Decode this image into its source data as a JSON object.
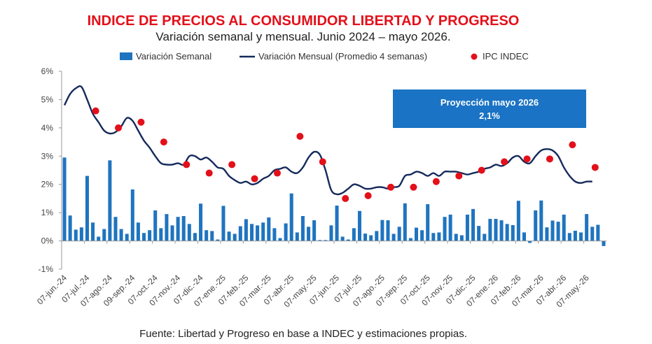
{
  "chart_data": {
    "type": "bar",
    "title": "INDICE DE PRECIOS AL CONSUMIDOR LIBERTAD Y PROGRESO",
    "subtitle": "Variación semanal y mensual. Junio 2024 – mayo 2026.",
    "legend": {
      "placement": "top",
      "entries": [
        "Variación Semanal",
        "Variación Mensual (Promedio 4 semanas)",
        "IPC INDEC"
      ]
    },
    "colors": {
      "bars": "#1f74bf",
      "line": "#152a5c",
      "points": "#e3101a",
      "annotation_box": "#1a73c4",
      "title": "#e3101a"
    },
    "ylim": [
      -1,
      6
    ],
    "y_ticks": [
      "-1%",
      "0%",
      "1%",
      "2%",
      "3%",
      "4%",
      "5%",
      "6%"
    ],
    "x_tick_labels": [
      "07-jun.-24",
      "07-jul.-24",
      "07-ago.-24",
      "09-sep.-24",
      "07-oct.-24",
      "07-nov.-24",
      "07-dic.-24",
      "07-ene.-25",
      "07-feb.-25",
      "07-mar.-25",
      "07-abr.-25",
      "07-may.-25",
      "07-jun.-25",
      "07-jul.-25",
      "07-ago.-25",
      "07-sep.-25",
      "07-oct.-25",
      "07-nov.-25",
      "07-dic.-25",
      "07-ene.-26",
      "07-feb.-26",
      "07-mar.-26",
      "07-abr.-26",
      "07-may.-26"
    ],
    "grid": false,
    "weekly_values": [
      2.95,
      0.9,
      0.4,
      0.48,
      2.3,
      0.65,
      0.15,
      0.42,
      2.85,
      0.85,
      0.42,
      0.25,
      1.82,
      0.65,
      0.28,
      0.38,
      1.08,
      0.45,
      0.95,
      0.55,
      0.85,
      0.88,
      0.6,
      0.28,
      1.32,
      0.38,
      0.35,
      0.05,
      1.24,
      0.33,
      0.25,
      0.52,
      0.77,
      0.6,
      0.55,
      0.65,
      0.83,
      0.45,
      0.1,
      0.62,
      1.68,
      0.3,
      0.88,
      0.5,
      0.73,
      0.03,
      0.03,
      0.55,
      1.25,
      0.15,
      0.05,
      0.45,
      1.06,
      0.26,
      0.2,
      0.35,
      0.74,
      0.73,
      0.25,
      0.5,
      1.33,
      0.1,
      0.47,
      0.38,
      1.3,
      0.28,
      0.3,
      0.85,
      0.93,
      0.25,
      0.2,
      0.93,
      1.13,
      0.53,
      0.25,
      0.78,
      0.78,
      0.73,
      0.6,
      0.56,
      1.42,
      0.3,
      -0.07,
      1.08,
      1.43,
      0.48,
      0.72,
      0.68,
      0.93,
      0.28,
      0.36,
      0.3,
      0.95,
      0.5,
      0.57,
      -0.18
    ],
    "monthly_avg_line": [
      4.8,
      5.2,
      5.4,
      5.45,
      5.0,
      4.5,
      4.2,
      3.9,
      3.8,
      3.85,
      4.05,
      4.35,
      4.25,
      3.9,
      3.55,
      3.3,
      3.0,
      2.75,
      2.7,
      2.7,
      2.75,
      2.7,
      3.0,
      3.0,
      2.88,
      2.95,
      2.8,
      2.6,
      2.55,
      2.3,
      2.15,
      2.05,
      2.1,
      2.0,
      2.05,
      2.2,
      2.3,
      2.5,
      2.55,
      2.6,
      2.45,
      2.4,
      2.6,
      2.95,
      3.15,
      3.05,
      2.5,
      1.8,
      1.65,
      1.7,
      1.85,
      2.0,
      1.95,
      1.85,
      1.85,
      1.9,
      1.9,
      1.85,
      1.9,
      1.95,
      2.3,
      2.35,
      2.45,
      2.4,
      2.3,
      2.4,
      2.3,
      2.45,
      2.45,
      2.45,
      2.4,
      2.35,
      2.4,
      2.45,
      2.55,
      2.6,
      2.7,
      2.65,
      2.75,
      2.95,
      3.0,
      2.8,
      2.75,
      3.0,
      3.2,
      3.25,
      3.2,
      3.0,
      2.6,
      2.3,
      2.1,
      2.05,
      2.1,
      2.1
    ],
    "ipc_indec": [
      {
        "x": "07-jul.-24",
        "y": 4.6
      },
      {
        "x": "07-ago.-24",
        "y": 4.0
      },
      {
        "x": "09-sep.-24",
        "y": 4.2
      },
      {
        "x": "07-oct.-24",
        "y": 3.5
      },
      {
        "x": "07-nov.-24",
        "y": 2.7
      },
      {
        "x": "07-dic.-24",
        "y": 2.4
      },
      {
        "x": "07-ene.-25",
        "y": 2.7
      },
      {
        "x": "07-feb.-25",
        "y": 2.2
      },
      {
        "x": "07-mar.-25",
        "y": 2.4
      },
      {
        "x": "07-abr.-25",
        "y": 3.7
      },
      {
        "x": "07-may.-25",
        "y": 2.8
      },
      {
        "x": "07-jun.-25",
        "y": 1.5
      },
      {
        "x": "07-jul.-25",
        "y": 1.6
      },
      {
        "x": "07-ago.-25",
        "y": 1.9
      },
      {
        "x": "07-sep.-25",
        "y": 1.9
      },
      {
        "x": "07-oct.-25",
        "y": 2.1
      },
      {
        "x": "07-nov.-25",
        "y": 2.3
      },
      {
        "x": "07-dic.-25",
        "y": 2.5
      },
      {
        "x": "07-ene.-26",
        "y": 2.8
      },
      {
        "x": "07-feb.-26",
        "y": 2.9
      },
      {
        "x": "07-mar.-26",
        "y": 2.9
      },
      {
        "x": "07-abr.-26",
        "y": 3.4
      },
      {
        "x": "07-may.-26",
        "y": 2.6
      }
    ],
    "annotation": {
      "title": "Proyección mayo 2026",
      "value": "2,1%"
    },
    "source": "Fuente: Libertad y Progreso en base a INDEC y estimaciones propias."
  }
}
